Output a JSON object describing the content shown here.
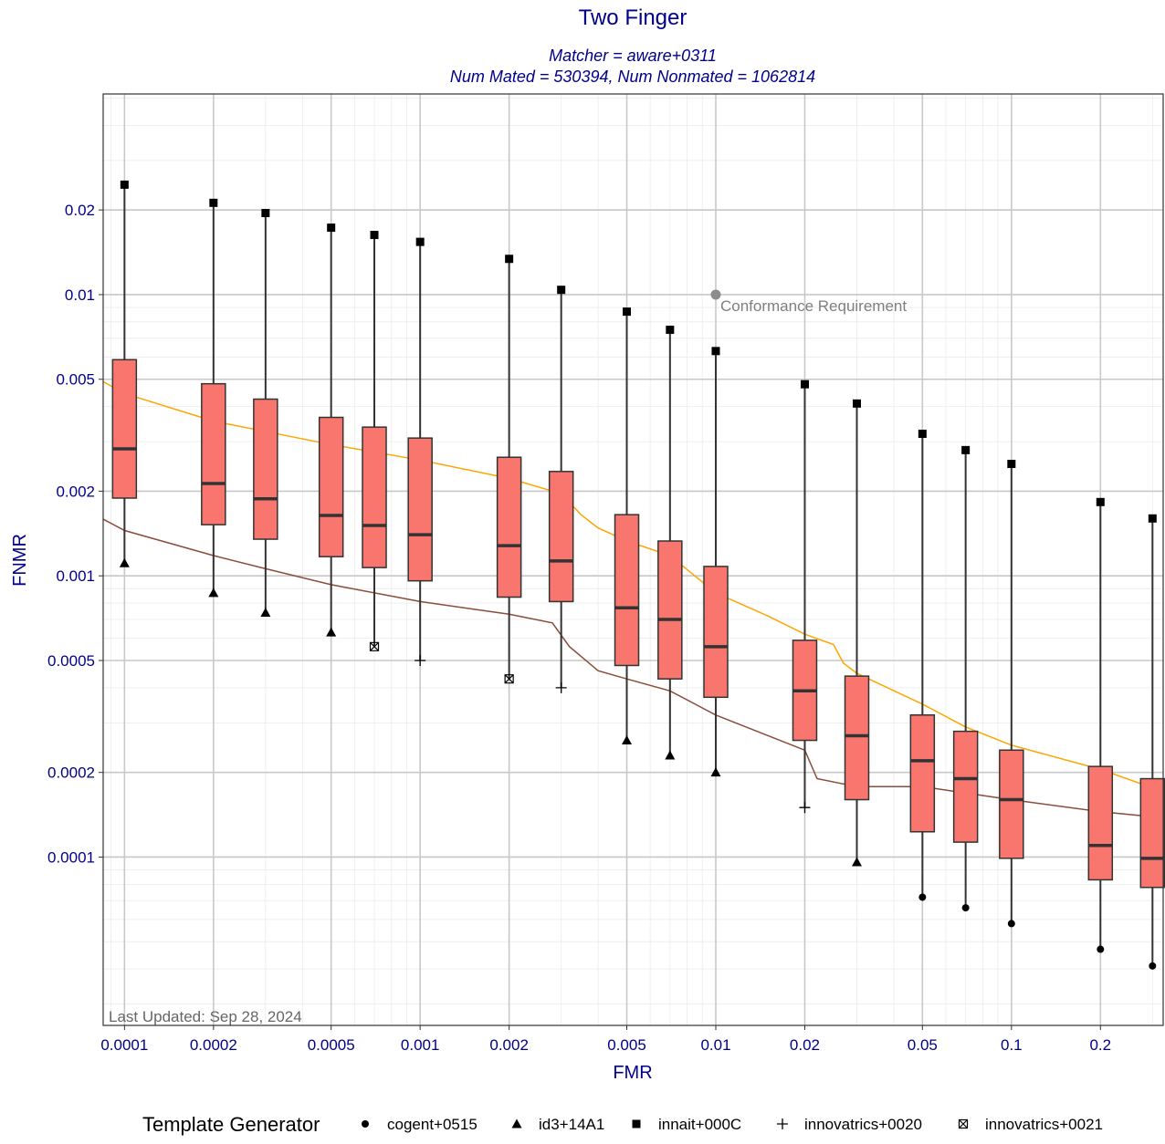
{
  "chart_data": {
    "type": "box",
    "title": "Two Finger",
    "subtitle_lines": [
      "Matcher = aware+0311",
      "Num Mated = 530394, Num Nonmated = 1062814"
    ],
    "xlabel": "FMR",
    "ylabel": "FNMR",
    "x_scale": "log",
    "y_scale": "log",
    "xlim": [
      8.47e-05,
      0.326
    ],
    "ylim": [
      2.52e-05,
      0.0517
    ],
    "x_ticks": [
      {
        "v": 0.0001,
        "label": "0.0001"
      },
      {
        "v": 0.0002,
        "label": "0.0002"
      },
      {
        "v": 0.0005,
        "label": "0.0005"
      },
      {
        "v": 0.001,
        "label": "0.001"
      },
      {
        "v": 0.002,
        "label": "0.002"
      },
      {
        "v": 0.005,
        "label": "0.005"
      },
      {
        "v": 0.01,
        "label": "0.01"
      },
      {
        "v": 0.02,
        "label": "0.02"
      },
      {
        "v": 0.05,
        "label": "0.05"
      },
      {
        "v": 0.1,
        "label": "0.1"
      },
      {
        "v": 0.2,
        "label": "0.2"
      }
    ],
    "y_ticks": [
      {
        "v": 0.0001,
        "label": "0.0001"
      },
      {
        "v": 0.0002,
        "label": "0.0002"
      },
      {
        "v": 0.0005,
        "label": "0.0005"
      },
      {
        "v": 0.001,
        "label": "0.001"
      },
      {
        "v": 0.002,
        "label": "0.002"
      },
      {
        "v": 0.005,
        "label": "0.005"
      },
      {
        "v": 0.01,
        "label": "0.01"
      },
      {
        "v": 0.02,
        "label": "0.02"
      }
    ],
    "grid": true,
    "boxes": [
      {
        "fmr": 0.0001,
        "whisker_low": 0.00111,
        "q1": 0.00189,
        "median": 0.00283,
        "q3": 0.00587,
        "whisker_high": 0.0246
      },
      {
        "fmr": 0.0002,
        "whisker_low": 0.00087,
        "q1": 0.00152,
        "median": 0.00213,
        "q3": 0.00482,
        "whisker_high": 0.0212
      },
      {
        "fmr": 0.0003,
        "whisker_low": 0.00074,
        "q1": 0.00135,
        "median": 0.00188,
        "q3": 0.00425,
        "whisker_high": 0.0195
      },
      {
        "fmr": 0.0005,
        "whisker_low": 0.00063,
        "q1": 0.00117,
        "median": 0.00164,
        "q3": 0.00366,
        "whisker_high": 0.0173
      },
      {
        "fmr": 0.0007,
        "whisker_low": 0.00056,
        "q1": 0.00107,
        "median": 0.00151,
        "q3": 0.00338,
        "whisker_high": 0.0163
      },
      {
        "fmr": 0.001,
        "whisker_low": 0.0005,
        "q1": 0.00096,
        "median": 0.0014,
        "q3": 0.00309,
        "whisker_high": 0.0154
      },
      {
        "fmr": 0.002,
        "whisker_low": 0.00043,
        "q1": 0.00084,
        "median": 0.00128,
        "q3": 0.00264,
        "whisker_high": 0.0134
      },
      {
        "fmr": 0.003,
        "whisker_low": 0.0004,
        "q1": 0.00081,
        "median": 0.00113,
        "q3": 0.00235,
        "whisker_high": 0.0104
      },
      {
        "fmr": 0.005,
        "whisker_low": 0.00026,
        "q1": 0.00048,
        "median": 0.00077,
        "q3": 0.00165,
        "whisker_high": 0.0087
      },
      {
        "fmr": 0.007,
        "whisker_low": 0.00023,
        "q1": 0.00043,
        "median": 0.0007,
        "q3": 0.00133,
        "whisker_high": 0.0075
      },
      {
        "fmr": 0.01,
        "whisker_low": 0.0002,
        "q1": 0.00037,
        "median": 0.00056,
        "q3": 0.00108,
        "whisker_high": 0.0063
      },
      {
        "fmr": 0.02,
        "whisker_low": 0.00015,
        "q1": 0.00026,
        "median": 0.00039,
        "q3": 0.00059,
        "whisker_high": 0.0048
      },
      {
        "fmr": 0.03,
        "whisker_low": 9.6e-05,
        "q1": 0.00016,
        "median": 0.00027,
        "q3": 0.00044,
        "whisker_high": 0.0041
      },
      {
        "fmr": 0.05,
        "whisker_low": 7.2e-05,
        "q1": 0.000123,
        "median": 0.00022,
        "q3": 0.00032,
        "whisker_high": 0.0032
      },
      {
        "fmr": 0.07,
        "whisker_low": 6.6e-05,
        "q1": 0.000113,
        "median": 0.00019,
        "q3": 0.00028,
        "whisker_high": 0.0028
      },
      {
        "fmr": 0.1,
        "whisker_low": 5.8e-05,
        "q1": 9.9e-05,
        "median": 0.00016,
        "q3": 0.00024,
        "whisker_high": 0.0025
      },
      {
        "fmr": 0.2,
        "whisker_low": 4.7e-05,
        "q1": 8.3e-05,
        "median": 0.00011,
        "q3": 0.00021,
        "whisker_high": 0.00183
      },
      {
        "fmr": 0.3,
        "whisker_low": 4.1e-05,
        "q1": 7.8e-05,
        "median": 9.9e-05,
        "q3": 0.00019,
        "whisker_high": 0.0016
      }
    ],
    "box_fill": "#f8766d",
    "marker_points": [
      {
        "generator": "innait+000C",
        "fmr": 0.0001,
        "fnmr": 0.0246
      },
      {
        "generator": "innait+000C",
        "fmr": 0.0002,
        "fnmr": 0.0212
      },
      {
        "generator": "innait+000C",
        "fmr": 0.0003,
        "fnmr": 0.0195
      },
      {
        "generator": "innait+000C",
        "fmr": 0.0005,
        "fnmr": 0.0173
      },
      {
        "generator": "innait+000C",
        "fmr": 0.0007,
        "fnmr": 0.0163
      },
      {
        "generator": "innait+000C",
        "fmr": 0.001,
        "fnmr": 0.0154
      },
      {
        "generator": "innait+000C",
        "fmr": 0.002,
        "fnmr": 0.0134
      },
      {
        "generator": "innait+000C",
        "fmr": 0.003,
        "fnmr": 0.0104
      },
      {
        "generator": "innait+000C",
        "fmr": 0.005,
        "fnmr": 0.0087
      },
      {
        "generator": "innait+000C",
        "fmr": 0.007,
        "fnmr": 0.0075
      },
      {
        "generator": "innait+000C",
        "fmr": 0.01,
        "fnmr": 0.0063
      },
      {
        "generator": "innait+000C",
        "fmr": 0.02,
        "fnmr": 0.0048
      },
      {
        "generator": "innait+000C",
        "fmr": 0.03,
        "fnmr": 0.0041
      },
      {
        "generator": "innait+000C",
        "fmr": 0.05,
        "fnmr": 0.0032
      },
      {
        "generator": "innait+000C",
        "fmr": 0.07,
        "fnmr": 0.0028
      },
      {
        "generator": "innait+000C",
        "fmr": 0.1,
        "fnmr": 0.0025
      },
      {
        "generator": "innait+000C",
        "fmr": 0.2,
        "fnmr": 0.00183
      },
      {
        "generator": "innait+000C",
        "fmr": 0.3,
        "fnmr": 0.0016
      },
      {
        "generator": "id3+14A1",
        "fmr": 0.0001,
        "fnmr": 0.00111
      },
      {
        "generator": "id3+14A1",
        "fmr": 0.0002,
        "fnmr": 0.00087
      },
      {
        "generator": "id3+14A1",
        "fmr": 0.0003,
        "fnmr": 0.00074
      },
      {
        "generator": "id3+14A1",
        "fmr": 0.0005,
        "fnmr": 0.00063
      },
      {
        "generator": "id3+14A1",
        "fmr": 0.005,
        "fnmr": 0.00026
      },
      {
        "generator": "id3+14A1",
        "fmr": 0.007,
        "fnmr": 0.00023
      },
      {
        "generator": "id3+14A1",
        "fmr": 0.01,
        "fnmr": 0.0002
      },
      {
        "generator": "id3+14A1",
        "fmr": 0.03,
        "fnmr": 9.6e-05
      },
      {
        "generator": "innovatrics+0021",
        "fmr": 0.0007,
        "fnmr": 0.00056
      },
      {
        "generator": "innovatrics+0021",
        "fmr": 0.002,
        "fnmr": 0.00043
      },
      {
        "generator": "innovatrics+0020",
        "fmr": 0.001,
        "fnmr": 0.0005
      },
      {
        "generator": "innovatrics+0020",
        "fmr": 0.003,
        "fnmr": 0.0004
      },
      {
        "generator": "innovatrics+0020",
        "fmr": 0.02,
        "fnmr": 0.00015
      },
      {
        "generator": "cogent+0515",
        "fmr": 0.05,
        "fnmr": 7.2e-05
      },
      {
        "generator": "cogent+0515",
        "fmr": 0.07,
        "fnmr": 6.6e-05
      },
      {
        "generator": "cogent+0515",
        "fmr": 0.1,
        "fnmr": 5.8e-05
      },
      {
        "generator": "cogent+0515",
        "fmr": 0.2,
        "fnmr": 4.7e-05
      },
      {
        "generator": "cogent+0515",
        "fmr": 0.3,
        "fnmr": 4.1e-05
      }
    ],
    "lines": [
      {
        "color": "#ffa500",
        "points": [
          [
            8.47e-05,
            0.0049
          ],
          [
            0.0001,
            0.00445
          ],
          [
            0.0002,
            0.00355
          ],
          [
            0.0005,
            0.00293
          ],
          [
            0.001,
            0.00258
          ],
          [
            0.002,
            0.00222
          ],
          [
            0.003,
            0.00196
          ],
          [
            0.0035,
            0.00165
          ],
          [
            0.004,
            0.00148
          ],
          [
            0.005,
            0.00133
          ],
          [
            0.007,
            0.00118
          ],
          [
            0.01,
            0.00087
          ],
          [
            0.015,
            0.00072
          ],
          [
            0.02,
            0.00062
          ],
          [
            0.025,
            0.00057
          ],
          [
            0.027,
            0.00049
          ],
          [
            0.03,
            0.00045
          ],
          [
            0.05,
            0.00035
          ],
          [
            0.07,
            0.00029
          ],
          [
            0.1,
            0.00025
          ],
          [
            0.2,
            0.000205
          ],
          [
            0.326,
            0.000171
          ]
        ]
      },
      {
        "color": "#8b4c39",
        "points": [
          [
            8.47e-05,
            0.00159
          ],
          [
            0.0001,
            0.00145
          ],
          [
            0.0002,
            0.00118
          ],
          [
            0.0003,
            0.00106
          ],
          [
            0.0005,
            0.00093
          ],
          [
            0.001,
            0.00081
          ],
          [
            0.002,
            0.00073
          ],
          [
            0.0028,
            0.00068
          ],
          [
            0.0032,
            0.00056
          ],
          [
            0.004,
            0.00046
          ],
          [
            0.005,
            0.00043
          ],
          [
            0.007,
            0.00039
          ],
          [
            0.01,
            0.00032
          ],
          [
            0.02,
            0.00024
          ],
          [
            0.022,
            0.00019
          ],
          [
            0.03,
            0.000178
          ],
          [
            0.05,
            0.000178
          ],
          [
            0.1,
            0.00016
          ],
          [
            0.2,
            0.000145
          ],
          [
            0.326,
            0.000138
          ]
        ]
      }
    ],
    "conformance": {
      "fmr": 0.01,
      "fnmr": 0.01,
      "label": "Conformance Requirement",
      "color": "#8c8c8c"
    },
    "last_updated": "Last Updated: Sep 28, 2024",
    "legend": {
      "title": "Template Generator",
      "position": "bottom",
      "items": [
        {
          "label": "cogent+0515",
          "shape": "circle"
        },
        {
          "label": "id3+14A1",
          "shape": "triangle"
        },
        {
          "label": "innait+000C",
          "shape": "square"
        },
        {
          "label": "innovatrics+0020",
          "shape": "plus"
        },
        {
          "label": "innovatrics+0021",
          "shape": "boxed-x"
        }
      ]
    }
  }
}
